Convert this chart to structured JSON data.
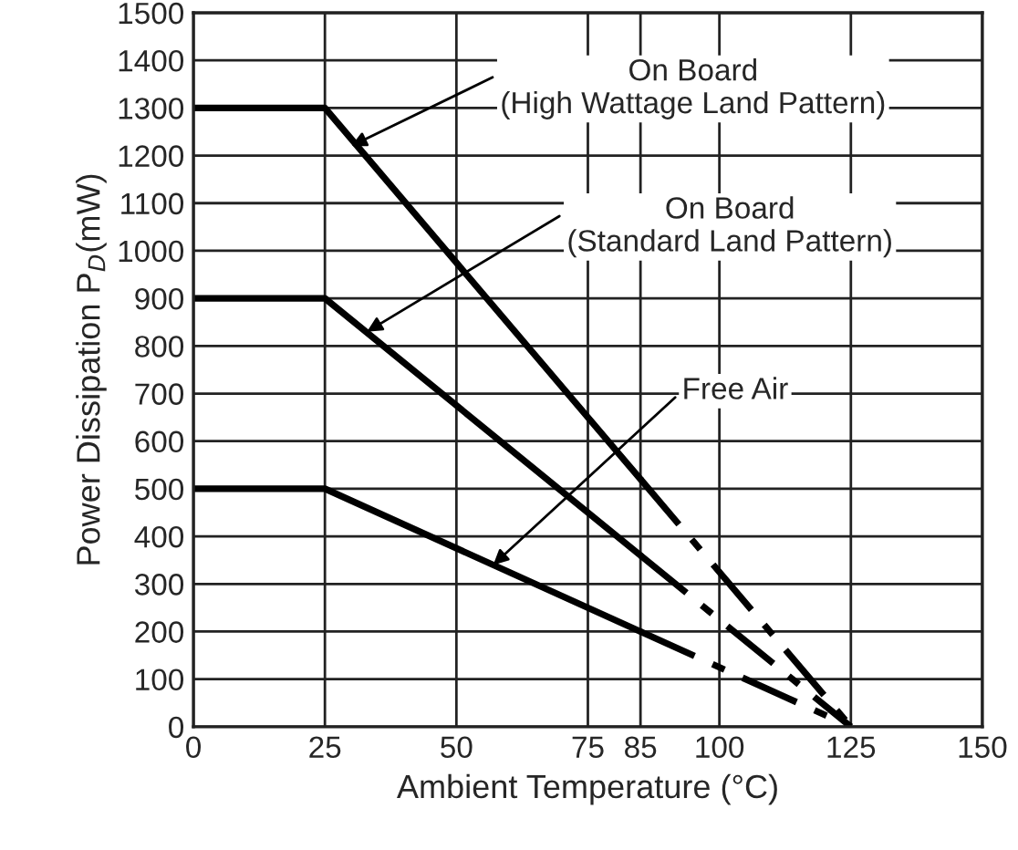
{
  "chart_data": {
    "type": "line",
    "xlabel": "Ambient Temperature (°C)",
    "ylabel": "Power Dissipation P$_{D}$(mW)",
    "series": [
      {
        "color": "#000000",
        "x": [
          0,
          25,
          85
        ],
        "values": [
          1300,
          1300,
          520
        ],
        "line_style": "solid"
      },
      {
        "color": "#000000",
        "x": [
          85,
          125
        ],
        "values": [
          520,
          0
        ],
        "line_style": "dashed"
      },
      {
        "color": "#000000",
        "x": [
          0,
          25,
          85
        ],
        "values": [
          900,
          900,
          360
        ],
        "line_style": "solid"
      },
      {
        "color": "#000000",
        "x": [
          85,
          125
        ],
        "values": [
          360,
          0
        ],
        "line_style": "dashed"
      },
      {
        "color": "#000000",
        "x": [
          0,
          25,
          85
        ],
        "values": [
          500,
          500,
          200
        ],
        "line_style": "solid"
      },
      {
        "color": "#000000",
        "x": [
          85,
          125
        ],
        "values": [
          200,
          0
        ],
        "line_style": "dashed"
      }
    ],
    "annotations": [
      {
        "text": "On Board\n(High Wattage Land Pattern)",
        "x": 30,
        "y": 1220
      },
      {
        "text": "On Board\n(Standard Land Pattern)",
        "x": 33,
        "y": 830
      },
      {
        "text": "Free Air",
        "x": 57,
        "y": 340
      }
    ],
    "xlim": [
      0,
      150
    ],
    "ylim": [
      0,
      1500
    ],
    "xticks": [
      0,
      25,
      50,
      75,
      85,
      100,
      125,
      150
    ],
    "yticks": [
      0,
      100,
      200,
      300,
      400,
      500,
      600,
      700,
      800,
      900,
      1000,
      1100,
      1200,
      1300,
      1400,
      1500
    ],
    "grid": true,
    "legend": false,
    "marker": "none"
  }
}
